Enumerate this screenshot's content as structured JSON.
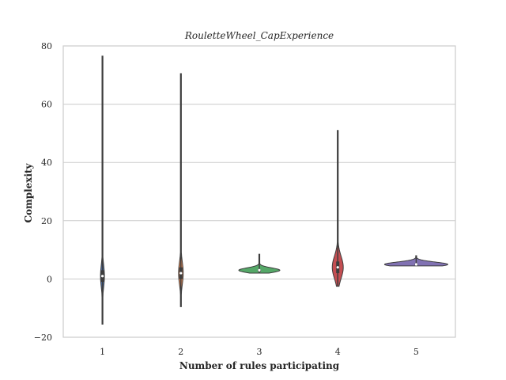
{
  "chart_data": {
    "type": "violin",
    "title": "RouletteWheel_CapExperience",
    "xlabel": "Number of rules participating",
    "ylabel": "Complexity",
    "ylim": [
      -20,
      80
    ],
    "yticks": [
      -20,
      0,
      20,
      40,
      60,
      80
    ],
    "grid": "y",
    "categories": [
      "1",
      "2",
      "3",
      "4",
      "5"
    ],
    "violins": [
      {
        "category": "1",
        "color": "#4c72b0",
        "min": -15.5,
        "max": 76.5,
        "median": 1.0,
        "q1": -1.0,
        "q3": 3.0
      },
      {
        "category": "2",
        "color": "#dd8452",
        "min": -9.5,
        "max": 70.5,
        "median": 2.0,
        "q1": 0.0,
        "q3": 4.0
      },
      {
        "category": "3",
        "color": "#55a868",
        "min": 2.0,
        "max": 8.5,
        "median": 3.0,
        "q1": 2.5,
        "q3": 3.2
      },
      {
        "category": "4",
        "color": "#c44e52",
        "min": -2.5,
        "max": 51.0,
        "median": 4.0,
        "q1": 2.0,
        "q3": 6.0
      },
      {
        "category": "5",
        "color": "#8172b3",
        "min": 4.5,
        "max": 8.0,
        "median": 5.0,
        "q1": 4.8,
        "q3": 5.3
      }
    ]
  }
}
